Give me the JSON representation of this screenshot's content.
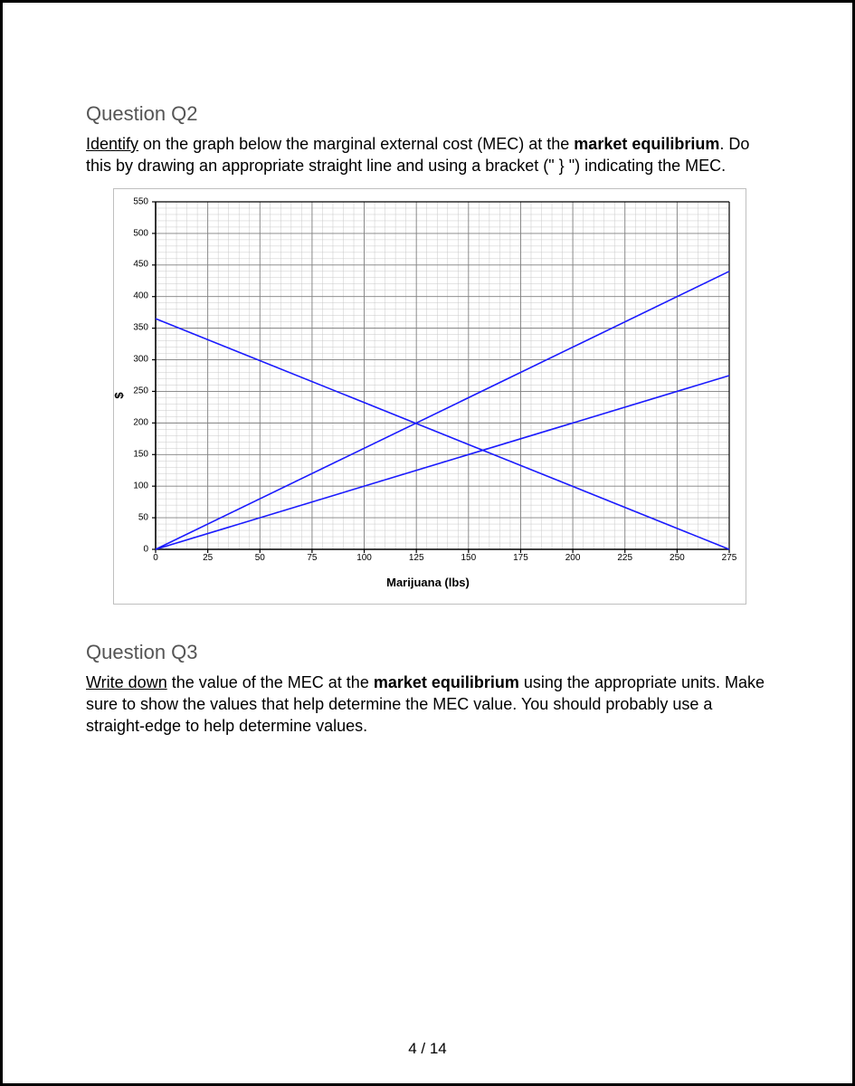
{
  "page": {
    "number": "4 / 14"
  },
  "q2": {
    "title": "Question Q2",
    "lead": "Identify",
    "body_mid_1": " on the graph below the marginal external cost (MEC) at the ",
    "bold_1": "market equilibrium",
    "body_mid_2": ". Do this by drawing an appropriate straight line and using a bracket (\" } \") indicating the MEC."
  },
  "q3": {
    "title": "Question Q3",
    "lead": "Write down",
    "body_mid_1": " the value of the MEC at the ",
    "bold_1": "market equilibrium",
    "body_mid_2": " using the appropriate units. Make sure to show the values that help determine the MEC value. You should probably use a straight-edge to help determine values."
  },
  "chart": {
    "type": "line",
    "xlabel": "Marijuana (lbs)",
    "ylabel": "$",
    "xlim": [
      0,
      275
    ],
    "ylim": [
      0,
      550
    ],
    "x_ticks": [
      0,
      25,
      50,
      75,
      100,
      125,
      150,
      175,
      200,
      225,
      250,
      275
    ],
    "y_ticks": [
      0,
      50,
      100,
      150,
      200,
      250,
      300,
      350,
      400,
      450,
      500,
      550
    ],
    "x_minor_per_major": 5,
    "y_minor_per_major": 5,
    "background_color": "#ffffff",
    "major_grid_color": "#808080",
    "minor_grid_color": "#c8c8c8",
    "axis_color": "#000000",
    "tick_fontsize": 10,
    "label_fontsize": 13,
    "line_color": "#1a1aff",
    "line_width": 1.6,
    "lines": [
      {
        "name": "demand",
        "x1": 0,
        "y1": 365,
        "x2": 275,
        "y2": 0
      },
      {
        "name": "supply_private",
        "x1": 0,
        "y1": 0,
        "x2": 275,
        "y2": 275
      },
      {
        "name": "supply_social",
        "x1": 0,
        "y1": 0,
        "x2": 275,
        "y2": 440
      }
    ]
  }
}
